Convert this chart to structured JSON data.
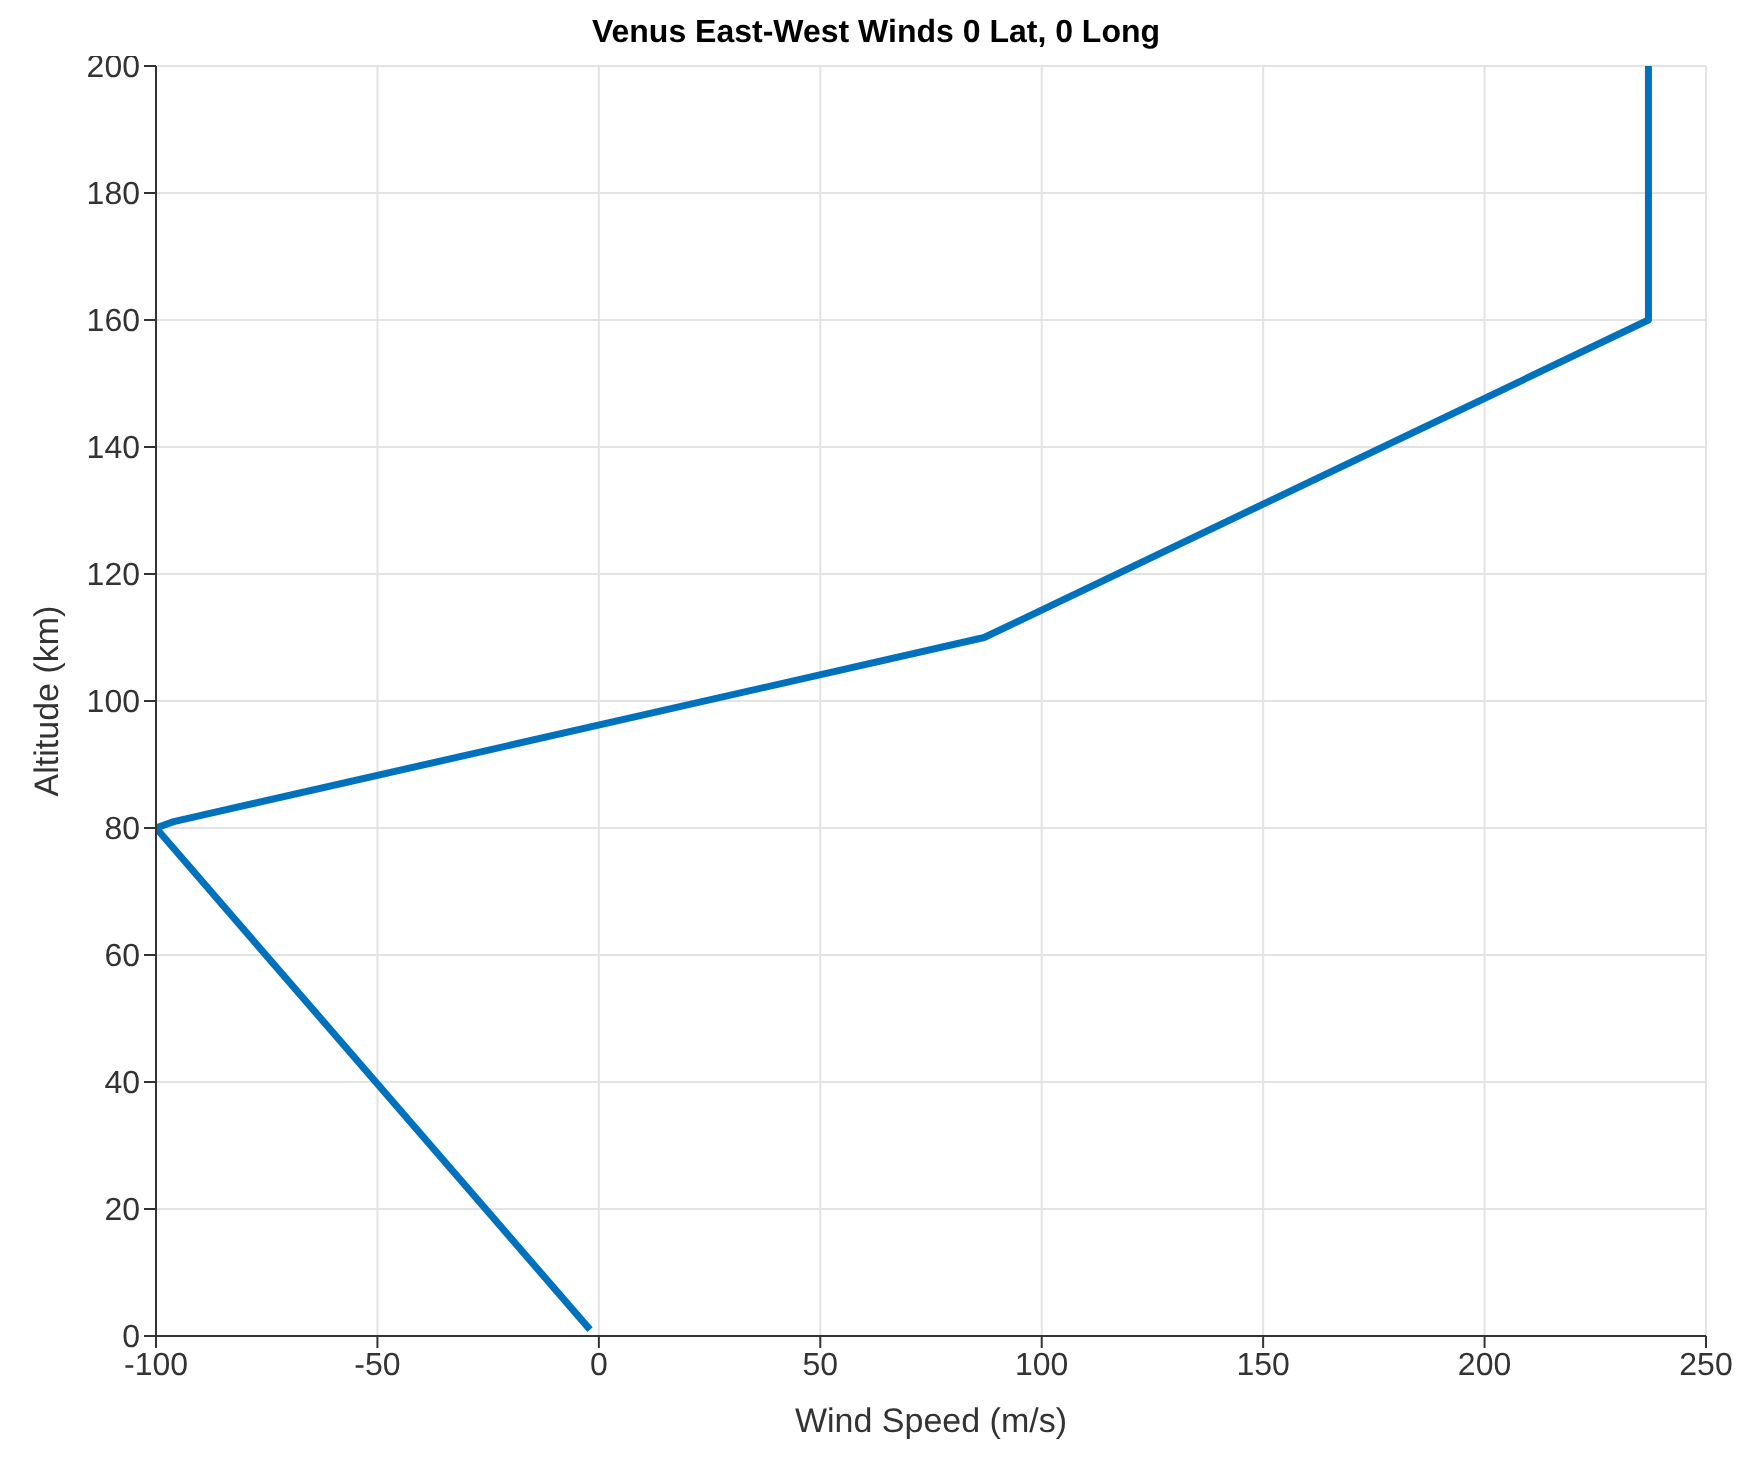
{
  "chart_data": {
    "type": "line",
    "title": "Venus East-West Winds 0 Lat, 0 Long",
    "xlabel": "Wind Speed (m/s)",
    "ylabel": "Altitude (km)",
    "x": [
      -2,
      -100,
      -96,
      87,
      237,
      237
    ],
    "series": [
      {
        "color": "#0072bd",
        "values": [
          1,
          80,
          81,
          110,
          160,
          200
        ]
      }
    ],
    "xlim": [
      -100,
      250
    ],
    "xticks": [
      -100,
      -50,
      0,
      50,
      100,
      150,
      200,
      250
    ],
    "ylim": [
      0,
      200
    ],
    "yticks": [
      0,
      20,
      40,
      60,
      80,
      100,
      120,
      140,
      160,
      180,
      200
    ],
    "grid": true,
    "marker": "none",
    "line_style": "solid"
  }
}
